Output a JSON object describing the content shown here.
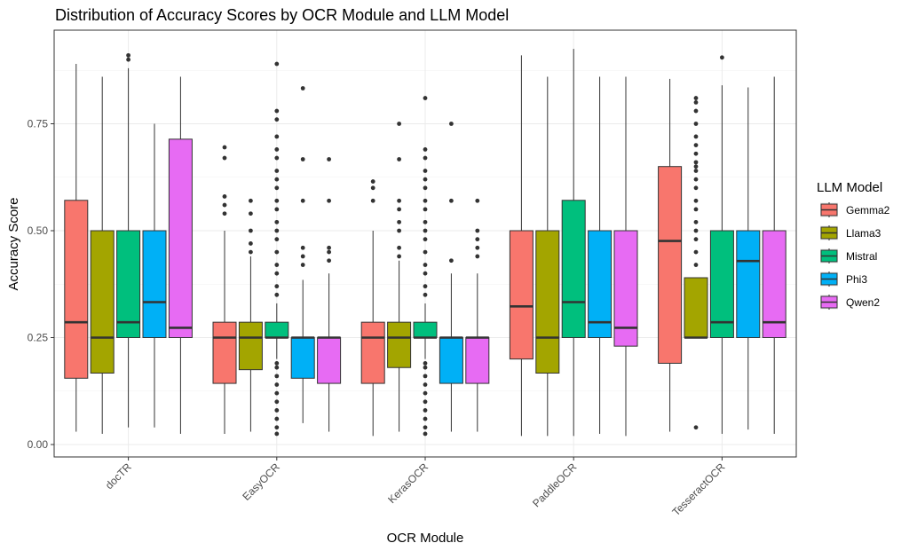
{
  "chart_data": {
    "type": "boxplot",
    "title": "Distribution of Accuracy Scores by OCR Module and LLM Model",
    "xlabel": "OCR Module",
    "ylabel": "Accuracy Score",
    "ylim": [
      -0.03,
      0.96
    ],
    "yticks": [
      0.0,
      0.25,
      0.5,
      0.75
    ],
    "ytick_labels": [
      "0.00",
      "0.25",
      "0.50",
      "0.75"
    ],
    "grid": true,
    "legend": {
      "title": "LLM Model",
      "position": "right"
    },
    "categories": [
      "docTR",
      "EasyOCR",
      "KerasOCR",
      "PaddleOCR",
      "TesseractOCR"
    ],
    "series": [
      {
        "name": "Gemma2",
        "color": "#F8766D",
        "boxes": [
          {
            "whisker_low": 0.03,
            "q1": 0.155,
            "median": 0.286,
            "q3": 0.571,
            "whisker_high": 0.89,
            "outliers": []
          },
          {
            "whisker_low": 0.025,
            "q1": 0.143,
            "median": 0.25,
            "q3": 0.286,
            "whisker_high": 0.5,
            "outliers": [
              0.54,
              0.56,
              0.58,
              0.67,
              0.695
            ]
          },
          {
            "whisker_low": 0.02,
            "q1": 0.143,
            "median": 0.25,
            "q3": 0.286,
            "whisker_high": 0.5,
            "outliers": [
              0.57,
              0.6,
              0.615
            ]
          },
          {
            "whisker_low": 0.02,
            "q1": 0.2,
            "median": 0.323,
            "q3": 0.5,
            "whisker_high": 0.91,
            "outliers": []
          },
          {
            "whisker_low": 0.03,
            "q1": 0.19,
            "median": 0.476,
            "q3": 0.65,
            "whisker_high": 0.855,
            "outliers": []
          }
        ]
      },
      {
        "name": "Llama3",
        "color": "#A3A500",
        "boxes": [
          {
            "whisker_low": 0.025,
            "q1": 0.167,
            "median": 0.25,
            "q3": 0.5,
            "whisker_high": 0.86,
            "outliers": []
          },
          {
            "whisker_low": 0.03,
            "q1": 0.175,
            "median": 0.25,
            "q3": 0.286,
            "whisker_high": 0.44,
            "outliers": [
              0.45,
              0.47,
              0.5,
              0.54,
              0.57
            ]
          },
          {
            "whisker_low": 0.03,
            "q1": 0.18,
            "median": 0.25,
            "q3": 0.286,
            "whisker_high": 0.43,
            "outliers": [
              0.44,
              0.46,
              0.5,
              0.52,
              0.55,
              0.57,
              0.667,
              0.75
            ]
          },
          {
            "whisker_low": 0.02,
            "q1": 0.167,
            "median": 0.25,
            "q3": 0.5,
            "whisker_high": 0.86,
            "outliers": []
          },
          {
            "whisker_low": 0.25,
            "q1": 0.25,
            "median": 0.25,
            "q3": 0.39,
            "whisker_high": 0.39,
            "outliers": [
              0.04,
              0.42,
              0.45,
              0.48,
              0.5,
              0.52,
              0.55,
              0.57,
              0.6,
              0.62,
              0.64,
              0.65,
              0.66,
              0.68,
              0.7,
              0.72,
              0.75,
              0.78,
              0.8,
              0.81
            ]
          }
        ]
      },
      {
        "name": "Mistral",
        "color": "#00BF7D",
        "boxes": [
          {
            "whisker_low": 0.04,
            "q1": 0.25,
            "median": 0.286,
            "q3": 0.5,
            "whisker_high": 0.88,
            "outliers": [
              0.9,
              0.91
            ]
          },
          {
            "whisker_low": 0.2,
            "q1": 0.25,
            "median": 0.25,
            "q3": 0.286,
            "whisker_high": 0.33,
            "outliers": [
              0.025,
              0.04,
              0.06,
              0.08,
              0.1,
              0.12,
              0.14,
              0.16,
              0.18,
              0.19,
              0.35,
              0.37,
              0.4,
              0.42,
              0.45,
              0.48,
              0.5,
              0.52,
              0.55,
              0.57,
              0.6,
              0.62,
              0.64,
              0.67,
              0.69,
              0.72,
              0.76,
              0.78,
              0.89
            ]
          },
          {
            "whisker_low": 0.2,
            "q1": 0.25,
            "median": 0.25,
            "q3": 0.286,
            "whisker_high": 0.33,
            "outliers": [
              0.025,
              0.04,
              0.06,
              0.08,
              0.1,
              0.12,
              0.14,
              0.16,
              0.18,
              0.19,
              0.35,
              0.37,
              0.4,
              0.42,
              0.45,
              0.48,
              0.5,
              0.52,
              0.55,
              0.57,
              0.6,
              0.62,
              0.64,
              0.67,
              0.69,
              0.81
            ]
          },
          {
            "whisker_low": 0.02,
            "q1": 0.25,
            "median": 0.333,
            "q3": 0.571,
            "whisker_high": 0.925,
            "outliers": []
          },
          {
            "whisker_low": 0.025,
            "q1": 0.25,
            "median": 0.286,
            "q3": 0.5,
            "whisker_high": 0.84,
            "outliers": [
              0.905
            ]
          }
        ]
      },
      {
        "name": "Phi3",
        "color": "#00B0F6",
        "boxes": [
          {
            "whisker_low": 0.04,
            "q1": 0.25,
            "median": 0.333,
            "q3": 0.5,
            "whisker_high": 0.75,
            "outliers": []
          },
          {
            "whisker_low": 0.05,
            "q1": 0.155,
            "median": 0.25,
            "q3": 0.25,
            "whisker_high": 0.385,
            "outliers": [
              0.42,
              0.44,
              0.46,
              0.57,
              0.667,
              0.833
            ]
          },
          {
            "whisker_low": 0.03,
            "q1": 0.143,
            "median": 0.25,
            "q3": 0.25,
            "whisker_high": 0.4,
            "outliers": [
              0.43,
              0.57,
              0.75
            ]
          },
          {
            "whisker_low": 0.025,
            "q1": 0.25,
            "median": 0.286,
            "q3": 0.5,
            "whisker_high": 0.86,
            "outliers": []
          },
          {
            "whisker_low": 0.035,
            "q1": 0.25,
            "median": 0.429,
            "q3": 0.5,
            "whisker_high": 0.835,
            "outliers": []
          }
        ]
      },
      {
        "name": "Qwen2",
        "color": "#E76BF3",
        "boxes": [
          {
            "whisker_low": 0.025,
            "q1": 0.25,
            "median": 0.273,
            "q3": 0.714,
            "whisker_high": 0.86,
            "outliers": []
          },
          {
            "whisker_low": 0.03,
            "q1": 0.143,
            "median": 0.25,
            "q3": 0.25,
            "whisker_high": 0.4,
            "outliers": [
              0.43,
              0.45,
              0.46,
              0.57,
              0.667
            ]
          },
          {
            "whisker_low": 0.03,
            "q1": 0.143,
            "median": 0.25,
            "q3": 0.25,
            "whisker_high": 0.4,
            "outliers": [
              0.44,
              0.46,
              0.48,
              0.5,
              0.57
            ]
          },
          {
            "whisker_low": 0.02,
            "q1": 0.23,
            "median": 0.273,
            "q3": 0.5,
            "whisker_high": 0.86,
            "outliers": []
          },
          {
            "whisker_low": 0.025,
            "q1": 0.25,
            "median": 0.286,
            "q3": 0.5,
            "whisker_high": 0.86,
            "outliers": []
          }
        ]
      }
    ]
  }
}
